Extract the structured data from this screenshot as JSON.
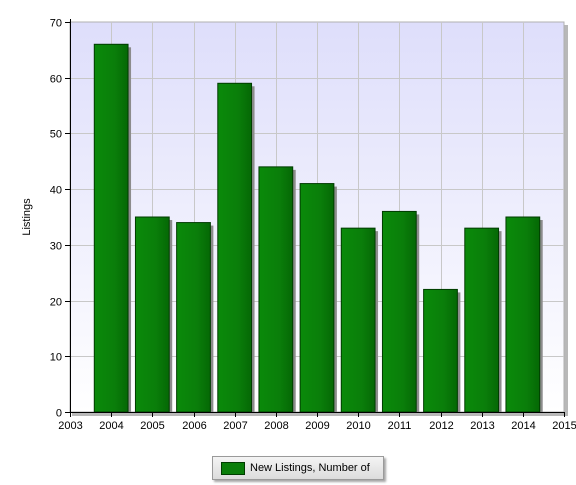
{
  "chart_data": {
    "type": "bar",
    "x_ticks": [
      "2003",
      "2004",
      "2005",
      "2006",
      "2007",
      "2008",
      "2009",
      "2010",
      "2011",
      "2012",
      "2013",
      "2014",
      "2015"
    ],
    "categories": [
      "2004",
      "2005",
      "2006",
      "2007",
      "2008",
      "2009",
      "2010",
      "2011",
      "2012",
      "2013",
      "2014"
    ],
    "series": [
      {
        "name": "New Listings, Number of",
        "values": [
          66,
          35,
          34,
          59,
          44,
          41,
          33,
          36,
          22,
          33,
          35
        ],
        "color": "#0a7e0a"
      }
    ],
    "ylabel": "Listings",
    "ylim": [
      0,
      70
    ],
    "y_ticks": [
      0,
      10,
      20,
      30,
      40,
      50,
      60,
      70
    ],
    "xlim": [
      2003,
      2015
    ],
    "grid": true,
    "legend_position": "bottom-center",
    "colors": {
      "plot_top": "#dedefb",
      "plot_bottom": "#ffffff",
      "grid": "#c8c8c8",
      "bar_edge": "#003c00"
    }
  }
}
